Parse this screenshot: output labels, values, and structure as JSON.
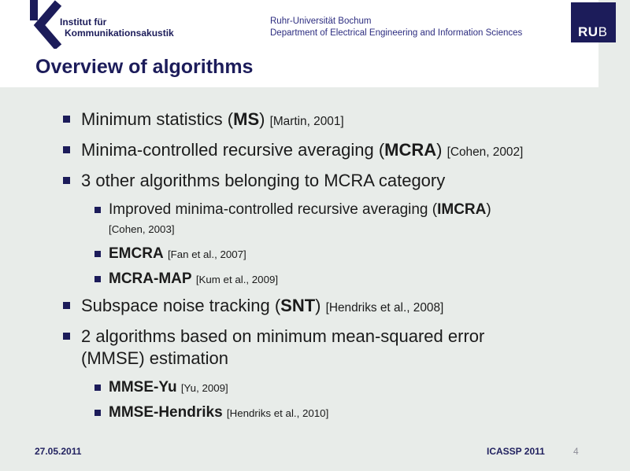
{
  "colors": {
    "navy": "#1c1c5a",
    "header_text": "#2d2d80",
    "body_text": "#1b1b1b",
    "background": "#e8ece9",
    "white": "#ffffff",
    "page_number": "#8e8e99"
  },
  "header": {
    "institute_line1": "Institut für",
    "institute_line2": "Kommunikationsakustik",
    "university": "Ruhr-Universität Bochum",
    "department": "Department of Electrical Engineering and Information Sciences",
    "logo": {
      "ru": "RU",
      "b": "B"
    }
  },
  "title": "Overview of algorithms",
  "bullets": [
    {
      "level": 1,
      "lines": [
        [
          {
            "t": "Minimum statistics (",
            "s": "n"
          },
          {
            "t": "MS",
            "s": "b"
          },
          {
            "t": ") ",
            "s": "n"
          },
          {
            "t": "[Martin, 2001]",
            "s": "c"
          }
        ]
      ]
    },
    {
      "level": 1,
      "lines": [
        [
          {
            "t": "Minima-controlled recursive averaging (",
            "s": "n"
          },
          {
            "t": "MCRA",
            "s": "b"
          },
          {
            "t": ") ",
            "s": "n"
          },
          {
            "t": "[Cohen, 2002]",
            "s": "c"
          }
        ]
      ]
    },
    {
      "level": 1,
      "lines": [
        [
          {
            "t": "3 other algorithms belonging to MCRA category",
            "s": "n"
          }
        ]
      ]
    },
    {
      "level": 2,
      "lines": [
        [
          {
            "t": "Improved minima-controlled recursive averaging (",
            "s": "n"
          },
          {
            "t": "IMCRA",
            "s": "b"
          },
          {
            "t": ")",
            "s": "n"
          }
        ],
        [
          {
            "t": "[Cohen, 2003]",
            "s": "c"
          }
        ]
      ]
    },
    {
      "level": 2,
      "lines": [
        [
          {
            "t": "EMCRA",
            "s": "b"
          },
          {
            "t": " ",
            "s": "n"
          },
          {
            "t": "[Fan et al., 2007]",
            "s": "c"
          }
        ]
      ]
    },
    {
      "level": 2,
      "lines": [
        [
          {
            "t": "MCRA-MAP",
            "s": "b"
          },
          {
            "t": " ",
            "s": "n"
          },
          {
            "t": "[Kum et al., 2009]",
            "s": "c"
          }
        ]
      ]
    },
    {
      "level": 1,
      "lines": [
        [
          {
            "t": "Subspace noise tracking (",
            "s": "n"
          },
          {
            "t": "SNT",
            "s": "b"
          },
          {
            "t": ") ",
            "s": "n"
          },
          {
            "t": "[Hendriks et al., 2008]",
            "s": "c"
          }
        ]
      ]
    },
    {
      "level": 1,
      "lines": [
        [
          {
            "t": "2 algorithms based on minimum mean-squared error",
            "s": "n"
          }
        ],
        [
          {
            "t": "(MMSE) estimation",
            "s": "n"
          }
        ]
      ]
    },
    {
      "level": 2,
      "lines": [
        [
          {
            "t": "MMSE-Yu",
            "s": "b"
          },
          {
            "t": " ",
            "s": "n"
          },
          {
            "t": "[Yu, 2009]",
            "s": "c"
          }
        ]
      ]
    },
    {
      "level": 2,
      "lines": [
        [
          {
            "t": "MMSE-Hendriks",
            "s": "b"
          },
          {
            "t": " ",
            "s": "n"
          },
          {
            "t": "[Hendriks et al., 2010]",
            "s": "c"
          }
        ]
      ]
    }
  ],
  "footer": {
    "date": "27.05.2011",
    "conference": "ICASSP 2011",
    "page": "4"
  }
}
